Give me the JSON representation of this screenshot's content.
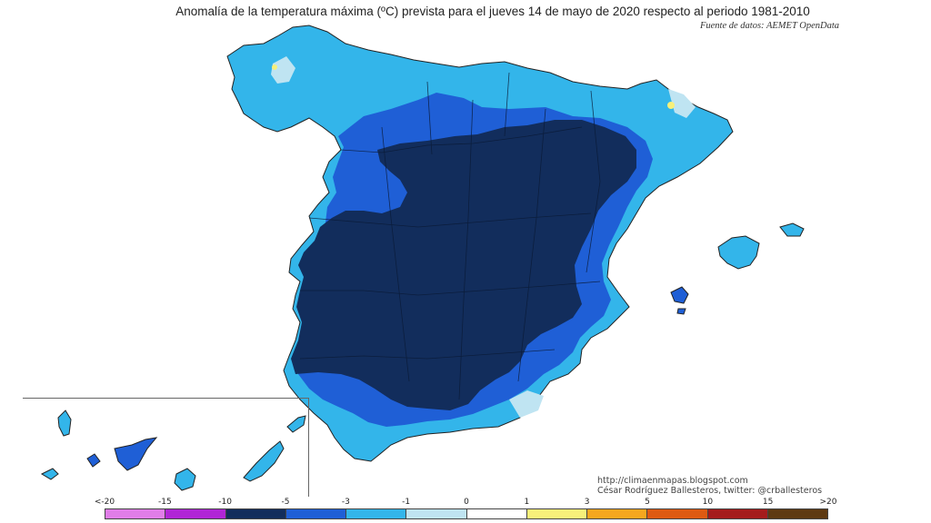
{
  "title": "Anomalía de la temperatura máxima (ºC) prevista para el jueves 14 de mayo de 2020 respecto al periodo 1981-2010",
  "source": "Fuente de datos: AEMET OpenData",
  "credits": {
    "line1": "http://climaenmapas.blogspot.com",
    "line2": "César Rodríguez Ballesteros, twitter: @crballesteros"
  },
  "legend": {
    "tick_labels": [
      "<-20",
      "-15",
      "-10",
      "-5",
      "-3",
      "-1",
      "0",
      "1",
      "3",
      "5",
      "10",
      "15",
      ">20"
    ],
    "colors": [
      "#e07de8",
      "#b025d6",
      "#122d5c",
      "#1f5fd6",
      "#33b5ea",
      "#bfe4f2",
      "#ffffff",
      "#f7f07a",
      "#f5a71f",
      "#de5a12",
      "#a51c1c",
      "#5e3a12"
    ]
  },
  "map": {
    "palette": {
      "deep_navy": "#122d5c",
      "blue": "#1f5fd6",
      "light_blue": "#33b5ea",
      "pale_blue": "#bfe4f2",
      "white": "#ffffff",
      "yellow": "#f7f07a"
    }
  }
}
